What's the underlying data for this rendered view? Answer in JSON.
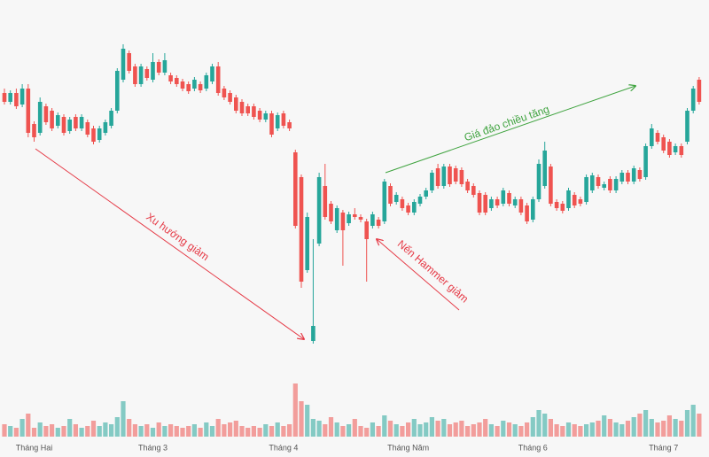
{
  "chart_data": {
    "type": "candlestick",
    "categories": [
      null,
      null,
      null,
      null,
      null,
      "Tháng Hai",
      null,
      null,
      null,
      null,
      null,
      null,
      null,
      null,
      null,
      null,
      null,
      null,
      null,
      null,
      null,
      null,
      null,
      null,
      null,
      "Tháng 3",
      null,
      null,
      null,
      null,
      null,
      null,
      null,
      null,
      null,
      null,
      null,
      null,
      null,
      null,
      null,
      null,
      null,
      null,
      null,
      null,
      null,
      "Tháng 4",
      null,
      null,
      null,
      null,
      null,
      null,
      null,
      null,
      null,
      null,
      null,
      null,
      null,
      null,
      null,
      null,
      null,
      null,
      null,
      null,
      "Tháng Năm",
      null,
      null,
      null,
      null,
      null,
      null,
      null,
      null,
      null,
      null,
      null,
      null,
      null,
      null,
      null,
      null,
      null,
      null,
      null,
      null,
      "Tháng 6",
      null,
      null,
      null,
      null,
      null,
      null,
      null,
      null,
      null,
      null,
      null,
      null,
      null,
      null,
      null,
      null,
      null,
      null,
      null,
      null,
      null,
      "Tháng 7",
      null,
      null,
      null,
      null,
      null,
      null
    ],
    "ohlc": [
      [
        295,
        300,
        282,
        285
      ],
      [
        285,
        298,
        282,
        295
      ],
      [
        295,
        300,
        277,
        280
      ],
      [
        282,
        305,
        279,
        300
      ],
      [
        300,
        305,
        245,
        250
      ],
      [
        260,
        263,
        240,
        245
      ],
      [
        250,
        290,
        247,
        285
      ],
      [
        280,
        283,
        259,
        262
      ],
      [
        275,
        278,
        252,
        255
      ],
      [
        258,
        273,
        255,
        270
      ],
      [
        268,
        271,
        247,
        250
      ],
      [
        252,
        268,
        249,
        265
      ],
      [
        268,
        271,
        252,
        255
      ],
      [
        255,
        271,
        252,
        268
      ],
      [
        262,
        265,
        245,
        248
      ],
      [
        255,
        258,
        237,
        240
      ],
      [
        242,
        258,
        239,
        255
      ],
      [
        250,
        265,
        247,
        262
      ],
      [
        258,
        278,
        255,
        275
      ],
      [
        275,
        323,
        272,
        320
      ],
      [
        310,
        350,
        307,
        345
      ],
      [
        340,
        343,
        317,
        320
      ],
      [
        325,
        328,
        302,
        305
      ],
      [
        305,
        328,
        302,
        325
      ],
      [
        322,
        325,
        309,
        312
      ],
      [
        310,
        340,
        307,
        330
      ],
      [
        330,
        333,
        315,
        318
      ],
      [
        318,
        340,
        315,
        332
      ],
      [
        315,
        318,
        305,
        308
      ],
      [
        312,
        315,
        302,
        305
      ],
      [
        308,
        311,
        297,
        300
      ],
      [
        305,
        308,
        294,
        297
      ],
      [
        300,
        313,
        297,
        310
      ],
      [
        305,
        308,
        295,
        298
      ],
      [
        300,
        318,
        297,
        315
      ],
      [
        308,
        328,
        305,
        325
      ],
      [
        325,
        330,
        292,
        295
      ],
      [
        300,
        303,
        287,
        290
      ],
      [
        295,
        298,
        282,
        285
      ],
      [
        290,
        293,
        272,
        275
      ],
      [
        285,
        288,
        269,
        272
      ],
      [
        280,
        283,
        269,
        272
      ],
      [
        280,
        283,
        265,
        268
      ],
      [
        275,
        278,
        262,
        265
      ],
      [
        265,
        275,
        262,
        272
      ],
      [
        272,
        275,
        245,
        248
      ],
      [
        255,
        273,
        252,
        270
      ],
      [
        272,
        275,
        255,
        258
      ],
      [
        262,
        265,
        252,
        255
      ],
      [
        228,
        231,
        142,
        145
      ],
      [
        200,
        203,
        75,
        82
      ],
      [
        95,
        160,
        92,
        155
      ],
      [
        15,
        130,
        12,
        32
      ],
      [
        125,
        205,
        122,
        200
      ],
      [
        190,
        215,
        152,
        155
      ],
      [
        170,
        173,
        147,
        150
      ],
      [
        140,
        168,
        137,
        165
      ],
      [
        160,
        163,
        100,
        140
      ],
      [
        148,
        161,
        145,
        158
      ],
      [
        158,
        165,
        152,
        155
      ],
      [
        155,
        158,
        149,
        152
      ],
      [
        150,
        153,
        82,
        130
      ],
      [
        145,
        161,
        142,
        158
      ],
      [
        152,
        155,
        142,
        145
      ],
      [
        150,
        198,
        147,
        195
      ],
      [
        190,
        193,
        167,
        170
      ],
      [
        172,
        183,
        169,
        180
      ],
      [
        175,
        178,
        162,
        165
      ],
      [
        168,
        171,
        157,
        160
      ],
      [
        160,
        175,
        157,
        172
      ],
      [
        170,
        181,
        167,
        178
      ],
      [
        178,
        188,
        175,
        185
      ],
      [
        185,
        208,
        182,
        205
      ],
      [
        210,
        215,
        187,
        190
      ],
      [
        190,
        215,
        187,
        212
      ],
      [
        212,
        215,
        189,
        192
      ],
      [
        210,
        213,
        192,
        195
      ],
      [
        208,
        211,
        189,
        192
      ],
      [
        195,
        198,
        182,
        185
      ],
      [
        190,
        193,
        177,
        180
      ],
      [
        182,
        185,
        157,
        160
      ],
      [
        180,
        183,
        157,
        160
      ],
      [
        165,
        178,
        162,
        175
      ],
      [
        175,
        178,
        165,
        168
      ],
      [
        170,
        188,
        167,
        185
      ],
      [
        182,
        185,
        167,
        170
      ],
      [
        168,
        178,
        165,
        175
      ],
      [
        175,
        178,
        157,
        160
      ],
      [
        168,
        171,
        147,
        150
      ],
      [
        152,
        178,
        149,
        175
      ],
      [
        175,
        220,
        172,
        215
      ],
      [
        190,
        240,
        187,
        230
      ],
      [
        212,
        215,
        167,
        170
      ],
      [
        172,
        175,
        162,
        165
      ],
      [
        170,
        173,
        159,
        162
      ],
      [
        165,
        188,
        162,
        185
      ],
      [
        180,
        183,
        165,
        168
      ],
      [
        175,
        178,
        167,
        170
      ],
      [
        172,
        203,
        169,
        200
      ],
      [
        185,
        205,
        182,
        202
      ],
      [
        200,
        203,
        187,
        190
      ],
      [
        188,
        195,
        185,
        192
      ],
      [
        198,
        201,
        182,
        185
      ],
      [
        185,
        201,
        182,
        198
      ],
      [
        195,
        208,
        192,
        205
      ],
      [
        205,
        208,
        192,
        195
      ],
      [
        195,
        213,
        192,
        210
      ],
      [
        208,
        211,
        195,
        198
      ],
      [
        200,
        238,
        197,
        235
      ],
      [
        235,
        260,
        232,
        255
      ],
      [
        250,
        253,
        237,
        240
      ],
      [
        245,
        248,
        227,
        230
      ],
      [
        240,
        243,
        222,
        225
      ],
      [
        228,
        238,
        225,
        235
      ],
      [
        235,
        238,
        222,
        225
      ],
      [
        240,
        278,
        237,
        275
      ],
      [
        275,
        303,
        272,
        300
      ],
      [
        310,
        313,
        282,
        285
      ]
    ],
    "volumes": [
      14,
      12,
      10,
      20,
      26,
      10,
      16,
      12,
      14,
      10,
      12,
      20,
      14,
      10,
      12,
      18,
      12,
      16,
      14,
      22,
      40,
      20,
      14,
      12,
      14,
      10,
      16,
      12,
      14,
      12,
      10,
      12,
      14,
      10,
      16,
      12,
      20,
      14,
      16,
      18,
      12,
      10,
      12,
      10,
      14,
      12,
      16,
      12,
      14,
      60,
      40,
      36,
      20,
      18,
      14,
      22,
      16,
      12,
      14,
      20,
      12,
      10,
      16,
      12,
      24,
      18,
      14,
      12,
      16,
      20,
      14,
      16,
      22,
      18,
      20,
      14,
      16,
      18,
      12,
      14,
      16,
      20,
      14,
      12,
      18,
      16,
      14,
      12,
      16,
      22,
      30,
      26,
      20,
      14,
      12,
      16,
      14,
      12,
      14,
      16,
      18,
      24,
      20,
      16,
      14,
      18,
      22,
      26,
      30,
      20,
      16,
      18,
      24,
      20,
      18,
      30,
      36,
      26
    ],
    "ylim": [
      0,
      400
    ],
    "volume_lim": [
      0,
      100
    ],
    "up_color": "#26a69a",
    "down_color": "#ef5350",
    "annotations": [
      {
        "text": "Xu hướng giảm",
        "color": "#e53945"
      },
      {
        "text": "Nến Hammer giảm",
        "color": "#e53945"
      },
      {
        "text": "Giá đảo chiều tăng",
        "color": "#3fa33f"
      }
    ]
  }
}
